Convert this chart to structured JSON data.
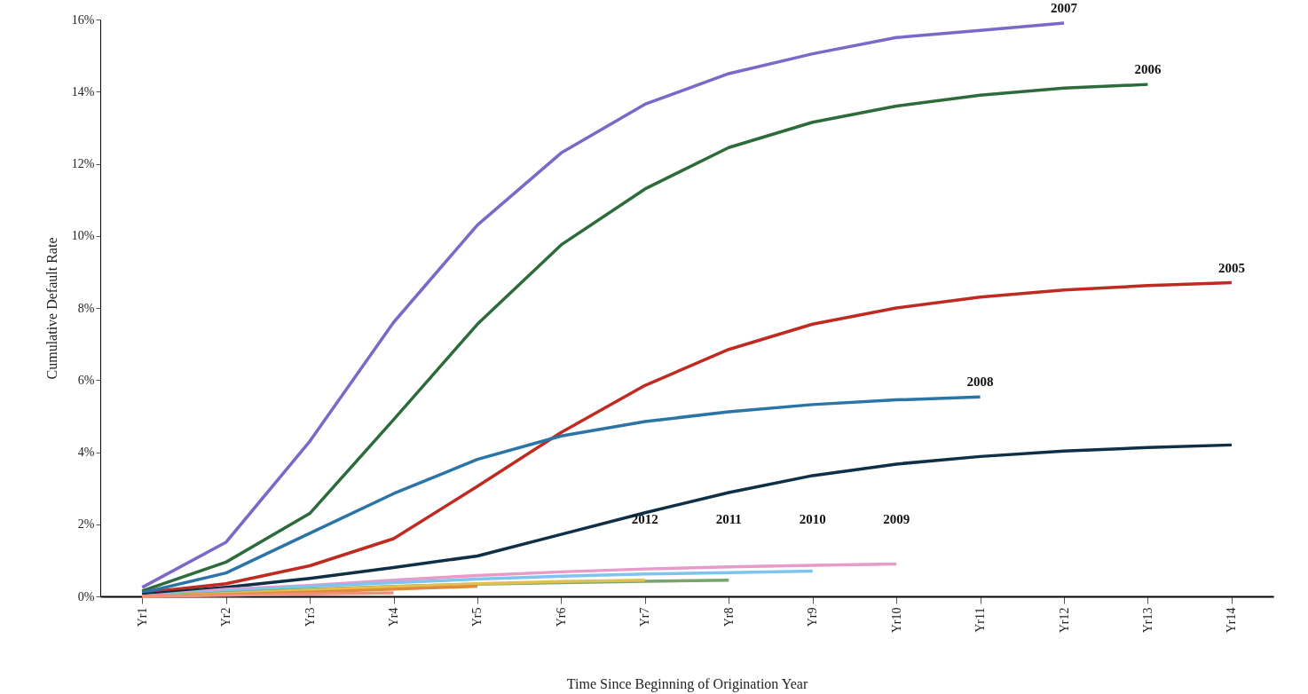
{
  "chart_data": {
    "type": "line",
    "xlabel": "Time Since Beginning of Origination Year",
    "ylabel": "Cumulative Default Rate",
    "categories": [
      "Yr1",
      "Yr2",
      "Yr3",
      "Yr4",
      "Yr5",
      "Yr6",
      "Yr7",
      "Yr8",
      "Yr9",
      "Yr10",
      "Yr11",
      "Yr12",
      "Yr13",
      "Yr14"
    ],
    "ylim": [
      0,
      16
    ],
    "yticks": [
      {
        "value": 0,
        "label": "0%"
      },
      {
        "value": 2,
        "label": "2%"
      },
      {
        "value": 4,
        "label": "4%"
      },
      {
        "value": 6,
        "label": "6%"
      },
      {
        "value": 8,
        "label": "8%"
      },
      {
        "value": 10,
        "label": "10%"
      },
      {
        "value": 12,
        "label": "12%"
      },
      {
        "value": 14,
        "label": "14%"
      },
      {
        "value": 16,
        "label": "16%"
      }
    ],
    "grid": false,
    "legend": false,
    "marker": "none",
    "line_style": "solid",
    "series": [
      {
        "name": "2007",
        "color": "#7b68c8",
        "values": [
          0.25,
          1.5,
          4.3,
          7.6,
          10.3,
          12.3,
          13.65,
          14.5,
          15.05,
          15.5,
          15.7,
          15.9,
          null,
          null
        ]
      },
      {
        "name": "2006",
        "color": "#2e6b3a",
        "values": [
          0.15,
          0.95,
          2.3,
          4.9,
          7.55,
          9.75,
          11.3,
          12.45,
          13.15,
          13.6,
          13.9,
          14.1,
          14.2,
          null
        ]
      },
      {
        "name": "2005",
        "color": "#bf2b20",
        "values": [
          0.1,
          0.35,
          0.85,
          1.6,
          3.05,
          4.55,
          5.85,
          6.85,
          7.55,
          8.0,
          8.3,
          8.5,
          8.62,
          8.7
        ]
      },
      {
        "name": "2008",
        "color": "#2a74a6",
        "values": [
          0.1,
          0.65,
          1.75,
          2.85,
          3.8,
          4.45,
          4.85,
          5.12,
          5.32,
          5.45,
          5.53,
          null,
          null,
          null
        ]
      },
      {
        "color": "#0e2f45",
        "values": [
          0.05,
          0.25,
          0.5,
          0.8,
          1.12,
          1.72,
          2.32,
          2.88,
          3.35,
          3.67,
          3.88,
          4.03,
          4.13,
          4.2
        ]
      },
      {
        "name": "2009",
        "color": "#e89ac8",
        "values": [
          0,
          0.2,
          0.3,
          0.45,
          0.58,
          0.68,
          0.76,
          0.82,
          0.86,
          0.9,
          null,
          null,
          null,
          null
        ]
      },
      {
        "name": "2010",
        "color": "#7fc4ee",
        "values": [
          0,
          0.15,
          0.28,
          0.38,
          0.48,
          0.56,
          0.62,
          0.66,
          0.7,
          null,
          null,
          null,
          null,
          null
        ]
      },
      {
        "name": "2011",
        "color": "#7aa56a",
        "values": [
          0,
          0.1,
          0.2,
          0.28,
          0.34,
          0.38,
          0.42,
          0.45,
          null,
          null,
          null,
          null,
          null,
          null
        ]
      },
      {
        "name": "2012",
        "color": "#e0c050",
        "values": [
          0,
          0.08,
          0.18,
          0.27,
          0.35,
          0.41,
          0.45,
          null,
          null,
          null,
          null,
          null,
          null,
          null
        ]
      },
      {
        "color": "#e08a3c",
        "values": [
          0,
          0.05,
          0.12,
          0.2,
          0.28,
          null,
          null,
          null,
          null,
          null,
          null,
          null,
          null,
          null
        ]
      },
      {
        "color": "#f0907a",
        "values": [
          0,
          0.03,
          0.07,
          0.1,
          null,
          null,
          null,
          null,
          null,
          null,
          null,
          null,
          null,
          null
        ]
      }
    ]
  }
}
